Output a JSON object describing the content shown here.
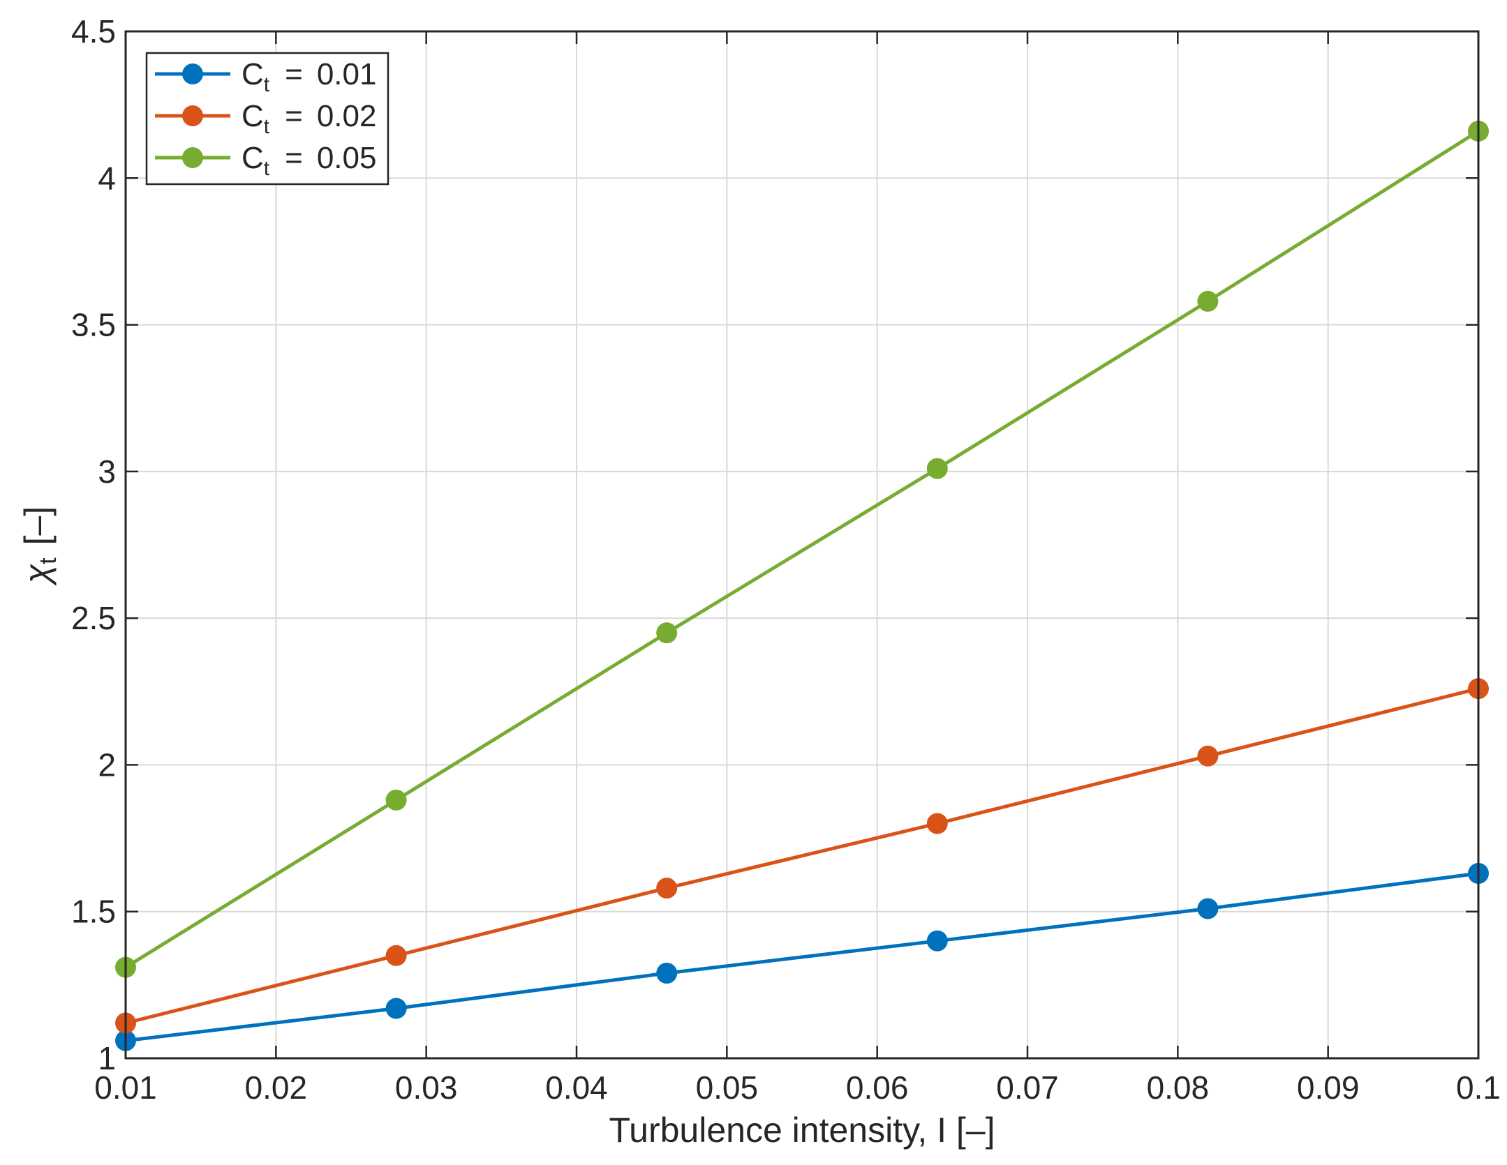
{
  "chart_data": {
    "type": "line",
    "title": "",
    "xlabel": "Turbulence intensity, I [–]",
    "ylabel": {
      "symbol": "χ",
      "subscript": "t",
      "unit": "[–]"
    },
    "xlim": [
      0.01,
      0.1
    ],
    "ylim": [
      1,
      4.5
    ],
    "xticks": [
      0.01,
      0.02,
      0.03,
      0.04,
      0.05,
      0.06,
      0.07,
      0.08,
      0.09,
      0.1
    ],
    "xtick_labels": [
      "0.01",
      "0.02",
      "0.03",
      "0.04",
      "0.05",
      "0.06",
      "0.07",
      "0.08",
      "0.09",
      "0.1"
    ],
    "yticks": [
      1,
      1.5,
      2,
      2.5,
      3,
      3.5,
      4,
      4.5
    ],
    "ytick_labels": [
      "1",
      "1.5",
      "2",
      "2.5",
      "3",
      "3.5",
      "4",
      "4.5"
    ],
    "grid": true,
    "legend_position": "top-left",
    "x": [
      0.01,
      0.028,
      0.046,
      0.064,
      0.082,
      0.1
    ],
    "series": [
      {
        "name": "0.01",
        "legend_prefix": "C",
        "legend_subscript": "t",
        "legend_eq": "=",
        "color": "#0072BD",
        "values": [
          1.06,
          1.17,
          1.29,
          1.4,
          1.51,
          1.63
        ]
      },
      {
        "name": "0.02",
        "legend_prefix": "C",
        "legend_subscript": "t",
        "legend_eq": "=",
        "color": "#D95319",
        "values": [
          1.12,
          1.35,
          1.58,
          1.8,
          2.03,
          2.26
        ]
      },
      {
        "name": "0.05",
        "legend_prefix": "C",
        "legend_subscript": "t",
        "legend_eq": "=",
        "color": "#77AC30",
        "values": [
          1.31,
          1.88,
          2.45,
          3.01,
          3.58,
          4.16
        ]
      }
    ]
  }
}
